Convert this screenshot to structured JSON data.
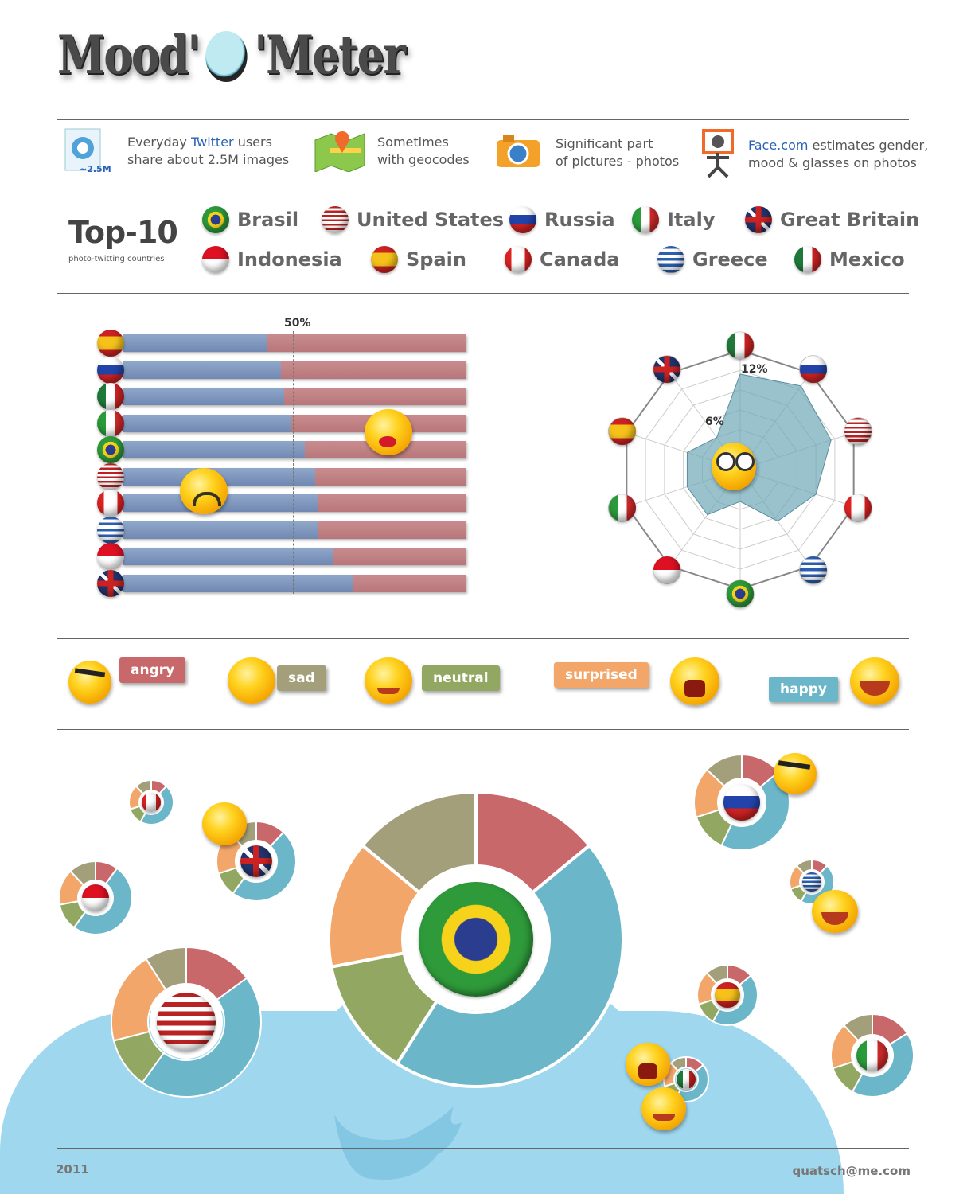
{
  "header": {
    "title_left": "Mood'",
    "title_right": "'Meter"
  },
  "info": {
    "item1_prefix": "Everyday ",
    "item1_highlight": "Twitter",
    "item1_suffix": " users",
    "item1_line2": "share about 2.5M images",
    "item1_icon_caption": "~2.5M",
    "item2_line1": "Sometimes",
    "item2_line2": "with geocodes",
    "item3_line1": "Significant part",
    "item3_line2": "of pictures - photos",
    "item4_highlight": "Face.com",
    "item4_suffix": " estimates gender,",
    "item4_line2": "mood & glasses on photos"
  },
  "top10": {
    "title": "Top-10",
    "subtitle": "photo-twitting countries",
    "countries": [
      "Brasil",
      "United States",
      "Russia",
      "Italy",
      "Great Britain",
      "Indonesia",
      "Spain",
      "Canada",
      "Greece",
      "Mexico"
    ]
  },
  "bar_chart": {
    "marker_label": "50%",
    "rows": [
      {
        "flag": "spain",
        "value": 42
      },
      {
        "flag": "russia",
        "value": 46
      },
      {
        "flag": "mexico",
        "value": 47
      },
      {
        "flag": "italy",
        "value": 49
      },
      {
        "flag": "brasil",
        "value": 53
      },
      {
        "flag": "united-states",
        "value": 56
      },
      {
        "flag": "canada",
        "value": 57
      },
      {
        "flag": "greece",
        "value": 57
      },
      {
        "flag": "indonesia",
        "value": 61
      },
      {
        "flag": "great-britain",
        "value": 67
      }
    ],
    "colors": {
      "blue": "#7f97c0",
      "red": "#c4868a"
    }
  },
  "radar_chart": {
    "labels": [
      "6%",
      "12%"
    ],
    "axes": [
      "mexico",
      "russia",
      "united-states",
      "canada",
      "greece",
      "brasil",
      "indonesia",
      "italy",
      "spain",
      "great-britain"
    ],
    "values": [
      12,
      13,
      12,
      10,
      8,
      4,
      7,
      7,
      7,
      5
    ],
    "max": 15,
    "fill_color": "#6ea8b8"
  },
  "emotions": {
    "angry": "angry",
    "sad": "sad",
    "neutral": "neutral",
    "surprised": "surprised",
    "happy": "happy",
    "colors": {
      "angry": "#c9686a",
      "sad": "#a39f7a",
      "neutral": "#92a862",
      "surprised": "#f2a66a",
      "happy": "#6bb6c8"
    }
  },
  "chart_data": {
    "type": "pie",
    "title": "",
    "categories": [
      "happy",
      "angry",
      "sad",
      "neutral",
      "surprised"
    ],
    "series": [
      {
        "name": "Brasil",
        "values": [
          45,
          14,
          14,
          13,
          14
        ]
      },
      {
        "name": "United States",
        "values": [
          45,
          15,
          9,
          11,
          20
        ]
      }
    ]
  },
  "footer": {
    "year": "2011",
    "email": "quatsch@me.com"
  }
}
